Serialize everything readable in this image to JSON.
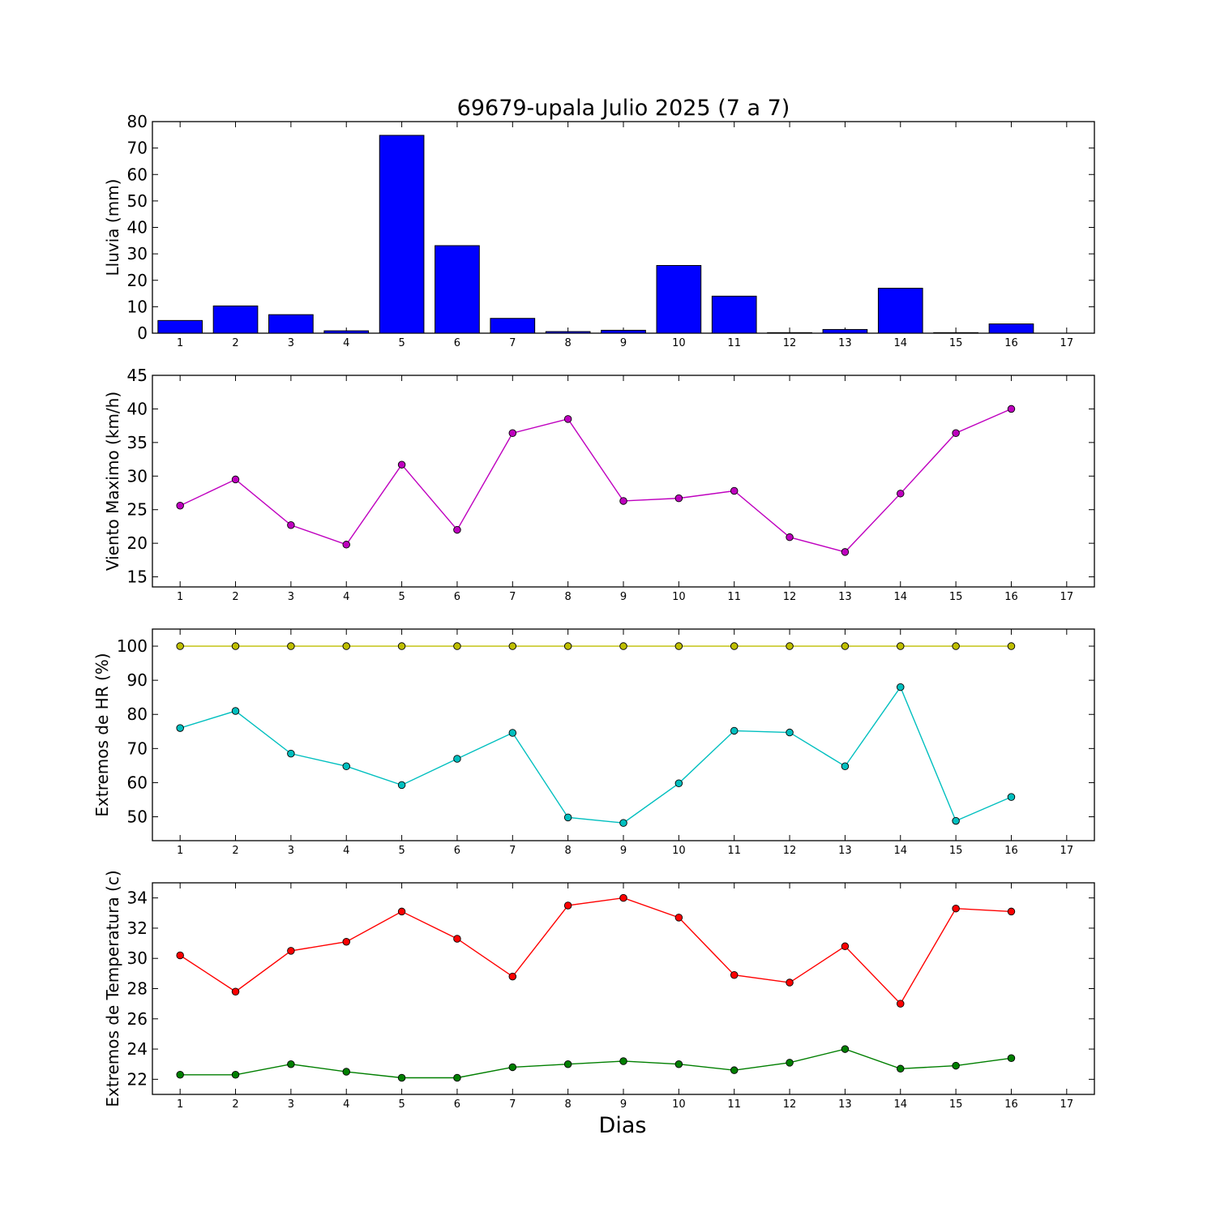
{
  "chart_data": [
    {
      "type": "bar",
      "title": "69679-upala Julio 2025  (7 a 7)",
      "ylabel": "Lluvia (mm)",
      "xlabel": "",
      "x": [
        1,
        2,
        3,
        4,
        5,
        6,
        7,
        8,
        9,
        10,
        11,
        12,
        13,
        14,
        15,
        16
      ],
      "values": [
        4.8,
        10.3,
        7.0,
        0.9,
        74.8,
        33.1,
        5.6,
        0.6,
        1.1,
        25.6,
        14.0,
        0.2,
        1.4,
        17.0,
        0.2,
        3.5
      ],
      "xticks": [
        1,
        2,
        3,
        4,
        5,
        6,
        7,
        8,
        9,
        10,
        11,
        12,
        13,
        14,
        15,
        16,
        17
      ],
      "xlim": [
        0.5,
        17.5
      ],
      "ylim": [
        0,
        80
      ],
      "yticks": [
        0,
        10,
        20,
        30,
        40,
        50,
        60,
        70,
        80
      ],
      "series": [
        {
          "values": [
            4.8,
            10.3,
            7.0,
            0.9,
            74.8,
            33.1,
            5.6,
            0.6,
            1.1,
            25.6,
            14.0,
            0.2,
            1.4,
            17.0,
            0.2,
            3.5
          ],
          "color": "#0000ff"
        }
      ]
    },
    {
      "type": "line",
      "ylabel": "Viento Maximo (km/h)",
      "x": [
        1,
        2,
        3,
        4,
        5,
        6,
        7,
        8,
        9,
        10,
        11,
        12,
        13,
        14,
        15,
        16
      ],
      "xticks": [
        1,
        2,
        3,
        4,
        5,
        6,
        7,
        8,
        9,
        10,
        11,
        12,
        13,
        14,
        15,
        16,
        17
      ],
      "xlim": [
        0.5,
        17.5
      ],
      "ylim": [
        13.5,
        45
      ],
      "yticks": [
        15,
        20,
        25,
        30,
        35,
        40,
        45
      ],
      "series": [
        {
          "color": "#bf00bf",
          "values": [
            25.6,
            29.5,
            22.7,
            19.8,
            31.7,
            22.0,
            36.4,
            38.5,
            26.3,
            26.7,
            27.8,
            20.9,
            18.7,
            27.4,
            36.4,
            40.0
          ]
        }
      ]
    },
    {
      "type": "line",
      "ylabel": "Extremos de HR (%)",
      "x": [
        1,
        2,
        3,
        4,
        5,
        6,
        7,
        8,
        9,
        10,
        11,
        12,
        13,
        14,
        15,
        16
      ],
      "xticks": [
        1,
        2,
        3,
        4,
        5,
        6,
        7,
        8,
        9,
        10,
        11,
        12,
        13,
        14,
        15,
        16,
        17
      ],
      "xlim": [
        0.5,
        17.5
      ],
      "ylim": [
        43,
        105
      ],
      "yticks": [
        50,
        60,
        70,
        80,
        90,
        100
      ],
      "series": [
        {
          "color": "#bfbf00",
          "values": [
            100,
            100,
            100,
            100,
            100,
            100,
            100,
            100,
            100,
            100,
            100,
            100,
            100,
            100,
            100,
            100
          ]
        },
        {
          "color": "#00bfbf",
          "values": [
            76.0,
            81.0,
            68.5,
            64.8,
            59.3,
            67.0,
            74.6,
            49.8,
            48.2,
            59.8,
            75.2,
            74.7,
            64.8,
            88.0,
            48.8,
            55.8
          ]
        }
      ]
    },
    {
      "type": "line",
      "ylabel": "Extremos de Temperatura (c)",
      "xlabel": "Dias",
      "x": [
        1,
        2,
        3,
        4,
        5,
        6,
        7,
        8,
        9,
        10,
        11,
        12,
        13,
        14,
        15,
        16
      ],
      "xticks": [
        1,
        2,
        3,
        4,
        5,
        6,
        7,
        8,
        9,
        10,
        11,
        12,
        13,
        14,
        15,
        16,
        17
      ],
      "xlim": [
        0.5,
        17.5
      ],
      "ylim": [
        21,
        35
      ],
      "yticks": [
        22,
        24,
        26,
        28,
        30,
        32,
        34
      ],
      "series": [
        {
          "color": "#ff0000",
          "values": [
            30.2,
            27.8,
            30.5,
            31.1,
            33.1,
            31.3,
            28.8,
            33.5,
            34.0,
            32.7,
            28.9,
            28.4,
            30.8,
            27.0,
            33.3,
            33.1
          ]
        },
        {
          "color": "#007f00",
          "values": [
            22.3,
            22.3,
            23.0,
            22.5,
            22.1,
            22.1,
            22.8,
            23.0,
            23.2,
            23.0,
            22.6,
            23.1,
            24.0,
            22.7,
            22.9,
            23.4
          ]
        }
      ]
    }
  ]
}
